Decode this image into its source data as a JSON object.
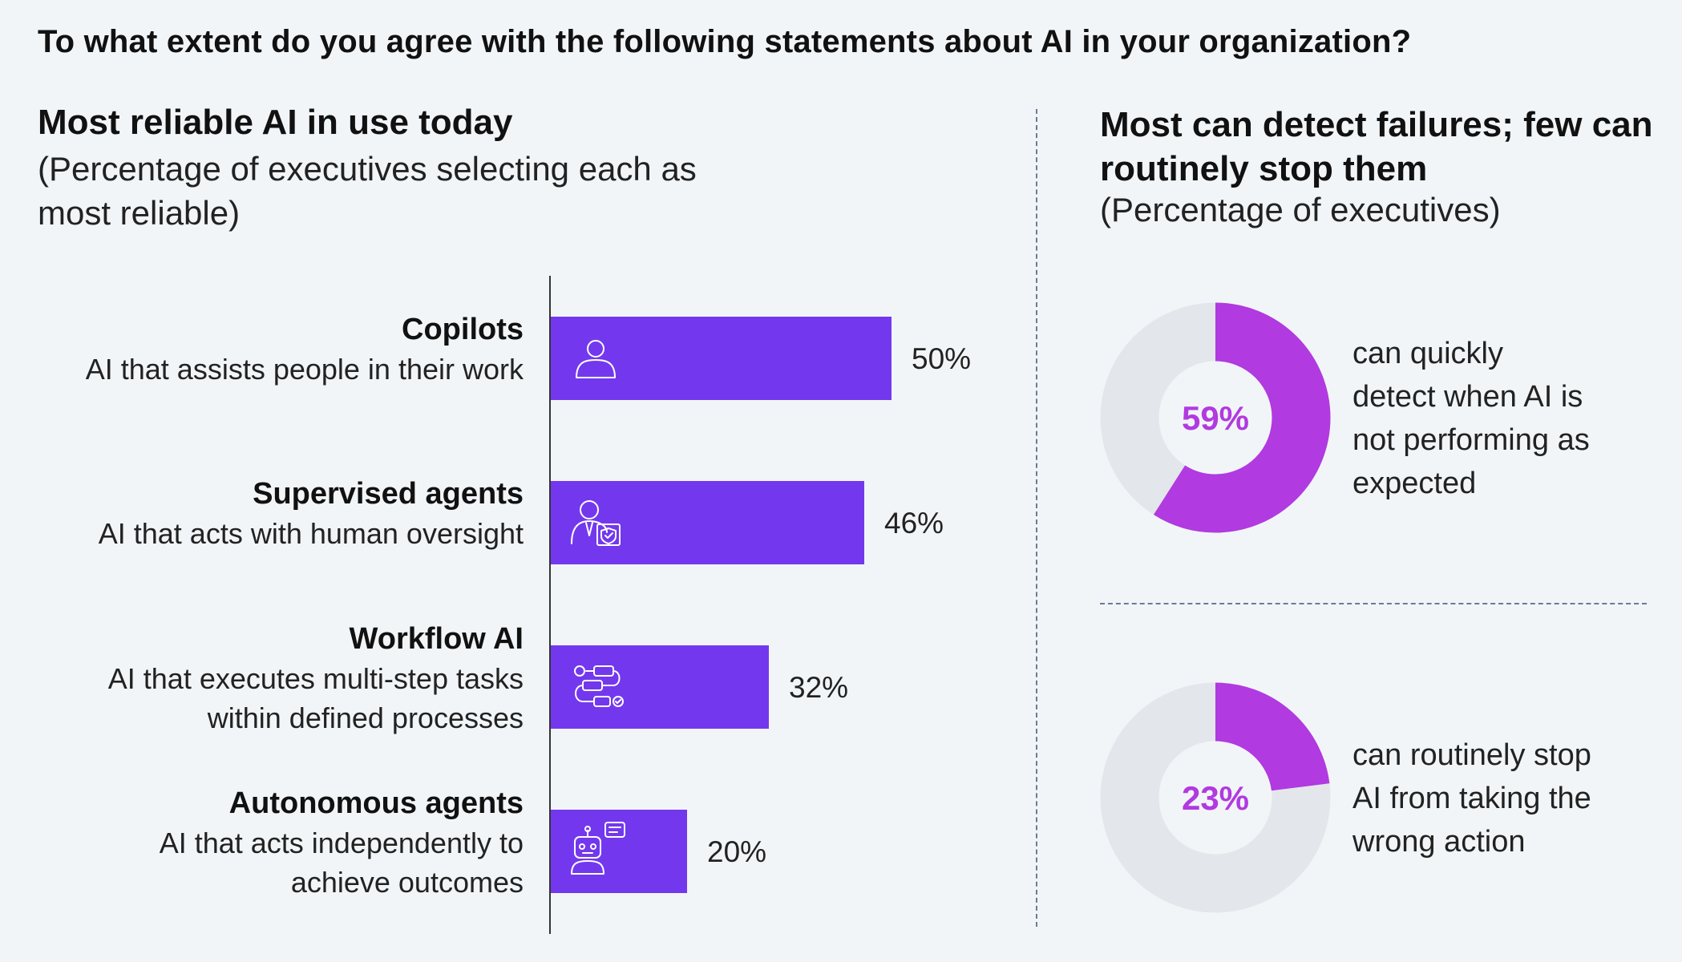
{
  "title": "To what extent do you agree with the following statements about AI in your organization?",
  "colors": {
    "bar": "#7338ee",
    "donut_accent": "#b13ae0",
    "donut_track": "#e3e7ec",
    "icon_stroke": "#ffffff",
    "divider": "#6b7a96"
  },
  "chart_data": [
    {
      "type": "bar",
      "orientation": "horizontal",
      "title": "Most reliable AI in use today",
      "subtitle": "(Percentage of executives selecting each as most reliable)",
      "categories": [
        "Copilots",
        "Supervised agents",
        "Workflow AI",
        "Autonomous agents"
      ],
      "descriptions": [
        [
          "AI that assists people in their work"
        ],
        [
          "AI that acts with human oversight"
        ],
        [
          "AI that executes multi-step tasks",
          "within defined processes"
        ],
        [
          "AI that acts independently to",
          "achieve outcomes"
        ]
      ],
      "icons": [
        "person-icon",
        "supervisor-shield-icon",
        "workflow-icon",
        "robot-icon"
      ],
      "values": [
        50,
        46,
        32,
        20
      ],
      "value_labels": [
        "50%",
        "46%",
        "32%",
        "20%"
      ],
      "unit": "%"
    },
    {
      "type": "pie",
      "variant": "donut",
      "title": "Most can detect failures; few can routinely stop them",
      "subtitle": "(Percentage of executives)",
      "items": [
        {
          "value": 59,
          "label": "59%",
          "text": [
            "can quickly",
            "detect when AI is",
            "not performing as",
            "expected"
          ]
        },
        {
          "value": 23,
          "label": "23%",
          "text": [
            "can routinely stop",
            "AI from taking the",
            "wrong action"
          ]
        }
      ]
    }
  ]
}
